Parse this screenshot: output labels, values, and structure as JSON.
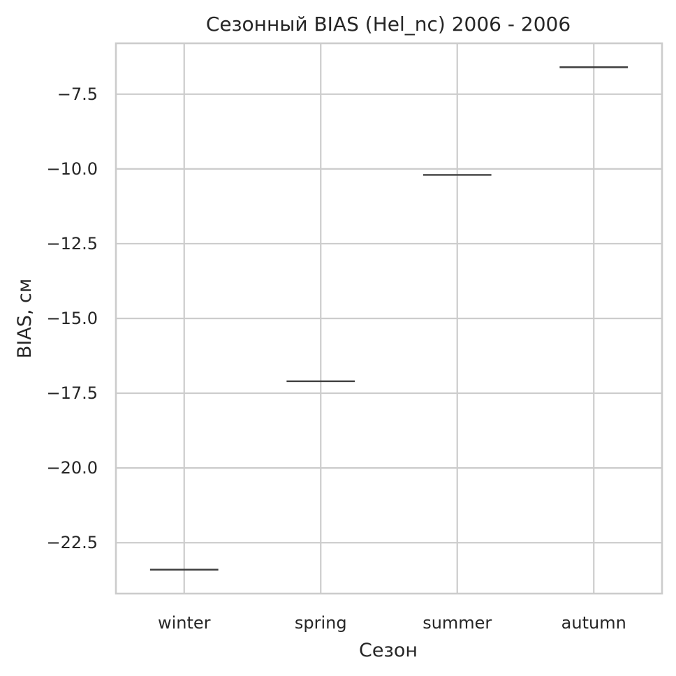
{
  "chart_data": {
    "type": "box",
    "title": "Сезонный BIAS (Hel_nc) 2006 - 2006",
    "xlabel": "Сезон",
    "ylabel": "BIAS, см",
    "categories": [
      "winter",
      "spring",
      "summer",
      "autumn"
    ],
    "values": [
      -23.4,
      -17.1,
      -10.2,
      -6.6
    ],
    "ylim": [
      -24.2,
      -5.8
    ],
    "yticks": [
      -22.5,
      -20.0,
      -17.5,
      -15.0,
      -12.5,
      -10.0,
      -7.5
    ],
    "ytick_labels": [
      "−22.5",
      "−20.0",
      "−17.5",
      "−15.0",
      "−12.5",
      "−10.0",
      "−7.5"
    ],
    "grid": true,
    "colors": {
      "grid": "#cccccc",
      "mark": "#3f3f3f",
      "text": "#262626",
      "background": "#ffffff"
    }
  }
}
